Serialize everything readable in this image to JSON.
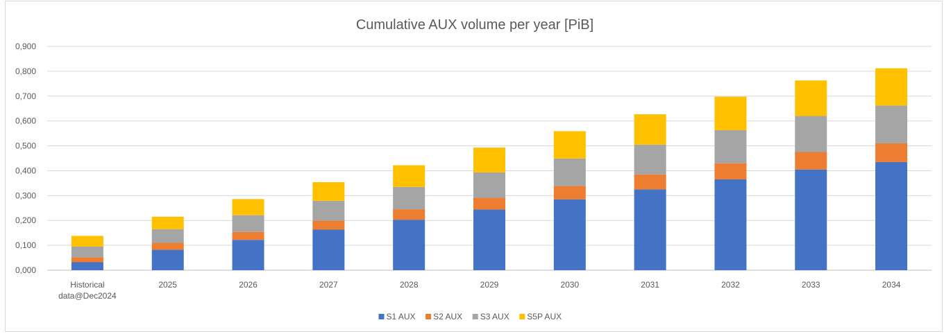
{
  "chart_data": {
    "type": "bar",
    "stacked": true,
    "title": "Cumulative AUX volume per year [PiB]",
    "xlabel": "",
    "ylabel": "",
    "ylim": [
      0,
      0.9
    ],
    "ytick_step": 0.1,
    "ytick_labels": [
      "0,000",
      "0,100",
      "0,200",
      "0,300",
      "0,400",
      "0,500",
      "0,600",
      "0,700",
      "0,800",
      "0,900"
    ],
    "grid": true,
    "legend_position": "bottom",
    "categories": [
      [
        "Historical",
        "data@Dec2024"
      ],
      [
        "2025"
      ],
      [
        "2026"
      ],
      [
        "2027"
      ],
      [
        "2028"
      ],
      [
        "2029"
      ],
      [
        "2030"
      ],
      [
        "2031"
      ],
      [
        "2032"
      ],
      [
        "2033"
      ],
      [
        "2034"
      ]
    ],
    "series": [
      {
        "name": "S1 AUX",
        "color": "#4472c4",
        "values": [
          0.032,
          0.082,
          0.122,
          0.163,
          0.203,
          0.244,
          0.285,
          0.325,
          0.365,
          0.405,
          0.435
        ]
      },
      {
        "name": "S2 AUX",
        "color": "#ed7d31",
        "values": [
          0.02,
          0.028,
          0.032,
          0.036,
          0.042,
          0.047,
          0.054,
          0.06,
          0.065,
          0.07,
          0.075
        ]
      },
      {
        "name": "S3 AUX",
        "color": "#a5a5a5",
        "values": [
          0.043,
          0.055,
          0.067,
          0.08,
          0.09,
          0.102,
          0.11,
          0.12,
          0.133,
          0.145,
          0.152
        ]
      },
      {
        "name": "S5P AUX",
        "color": "#ffc000",
        "values": [
          0.043,
          0.05,
          0.065,
          0.075,
          0.087,
          0.1,
          0.11,
          0.122,
          0.135,
          0.143,
          0.15
        ]
      }
    ]
  }
}
